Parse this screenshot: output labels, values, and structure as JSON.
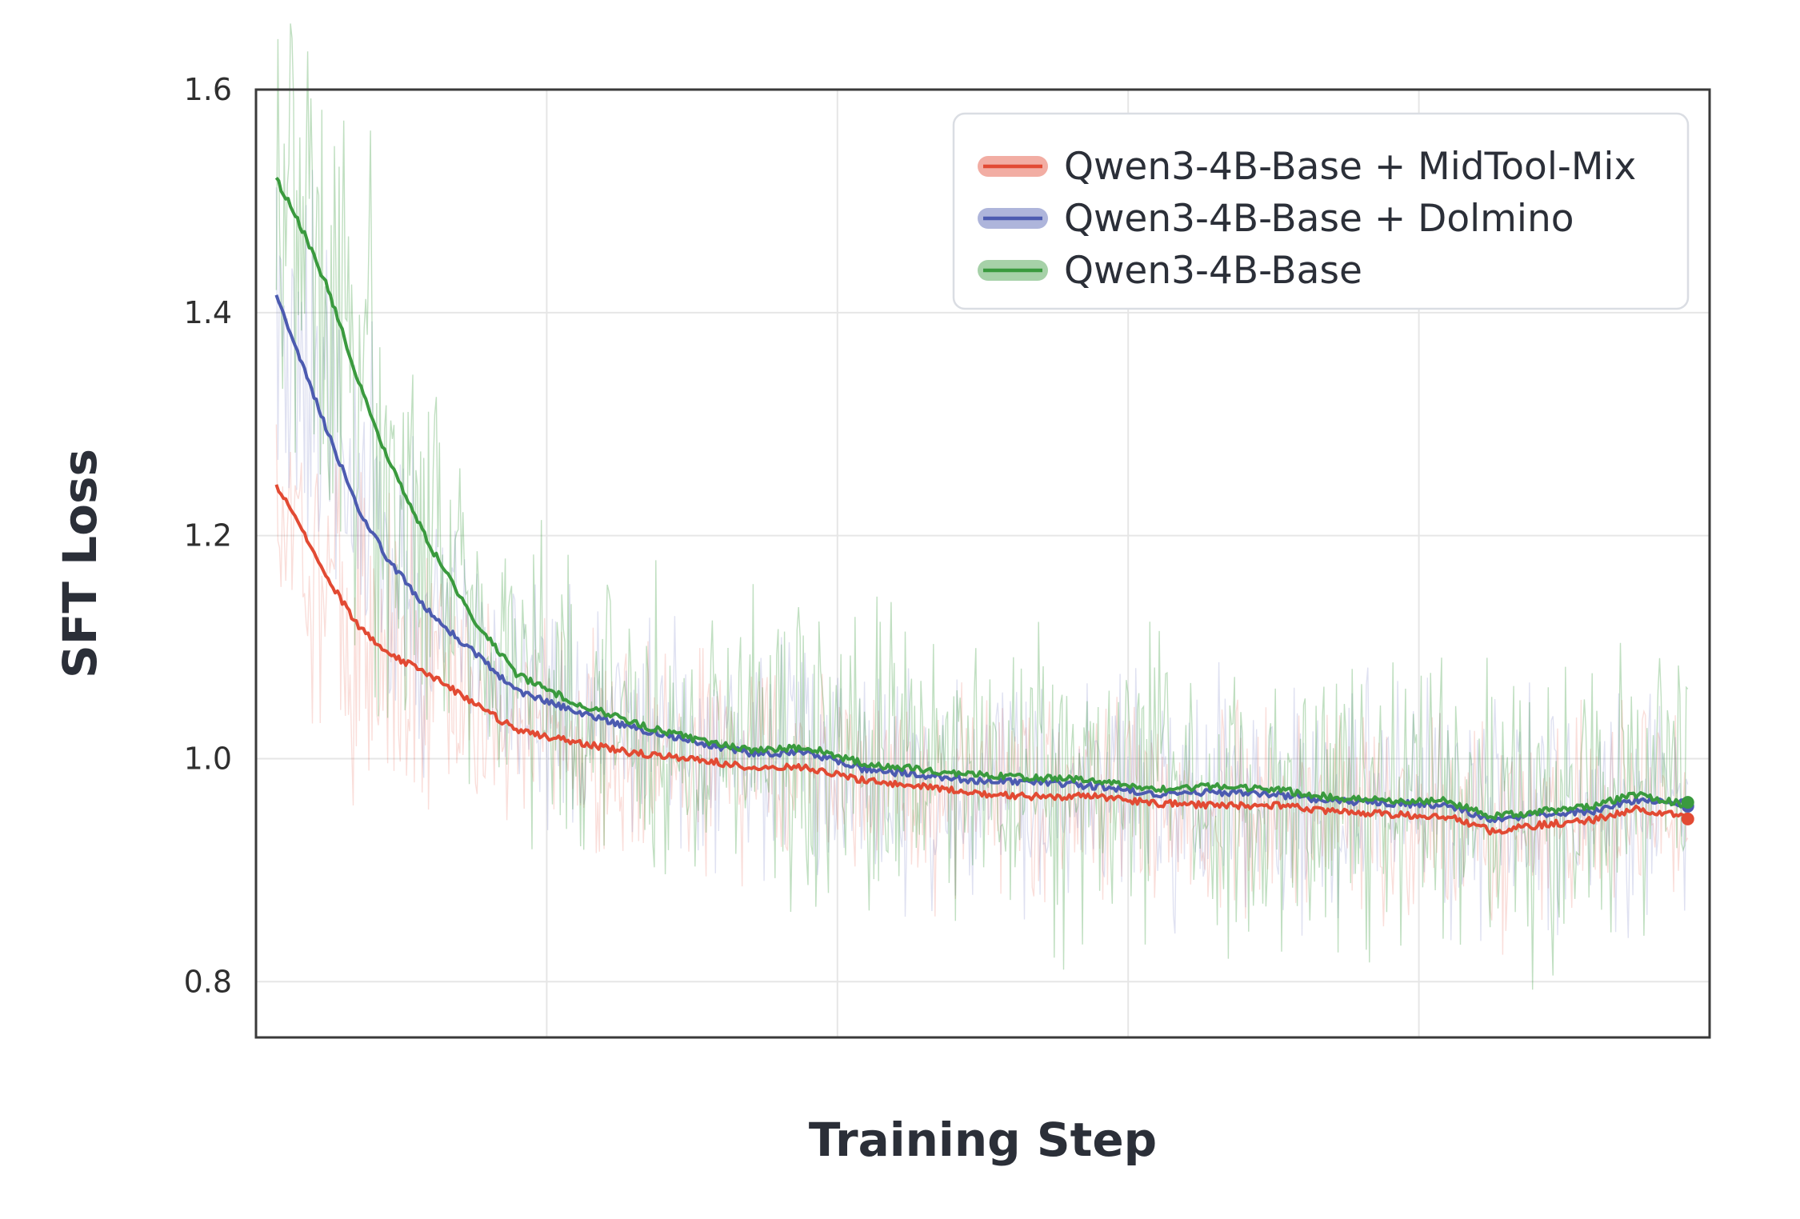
{
  "chart_data": {
    "type": "line",
    "title": "",
    "xlabel": "Training Step",
    "ylabel": "SFT Loss",
    "xlim": [
      0,
      1
    ],
    "ylim": [
      0.75,
      1.6
    ],
    "y_ticks": [
      "0.8",
      "1.0",
      "1.2",
      "1.4",
      "1.6"
    ],
    "x_gridlines_fraction": [
      0.2,
      0.4,
      0.6,
      0.8
    ],
    "x_tick_labels": [],
    "grid": true,
    "legend_position": "top-right",
    "series": [
      {
        "name": "Qwen3-4B-Base + MidTool-Mix",
        "color": "#e24a33",
        "smoothed": [
          [
            0.014,
            1.245
          ],
          [
            0.03,
            1.21
          ],
          [
            0.05,
            1.16
          ],
          [
            0.07,
            1.12
          ],
          [
            0.09,
            1.095
          ],
          [
            0.12,
            1.075
          ],
          [
            0.15,
            1.05
          ],
          [
            0.18,
            1.025
          ],
          [
            0.22,
            1.015
          ],
          [
            0.26,
            1.005
          ],
          [
            0.3,
            1.0
          ],
          [
            0.34,
            0.992
          ],
          [
            0.38,
            0.992
          ],
          [
            0.42,
            0.98
          ],
          [
            0.46,
            0.975
          ],
          [
            0.5,
            0.968
          ],
          [
            0.54,
            0.966
          ],
          [
            0.58,
            0.966
          ],
          [
            0.62,
            0.96
          ],
          [
            0.66,
            0.958
          ],
          [
            0.7,
            0.958
          ],
          [
            0.74,
            0.953
          ],
          [
            0.78,
            0.95
          ],
          [
            0.82,
            0.948
          ],
          [
            0.85,
            0.935
          ],
          [
            0.88,
            0.94
          ],
          [
            0.92,
            0.945
          ],
          [
            0.95,
            0.955
          ],
          [
            0.985,
            0.948
          ]
        ],
        "noise_amplitude": 0.09
      },
      {
        "name": "Qwen3-4B-Base + Dolmino",
        "color": "#4c5bb0",
        "smoothed": [
          [
            0.014,
            1.415
          ],
          [
            0.03,
            1.36
          ],
          [
            0.05,
            1.29
          ],
          [
            0.07,
            1.225
          ],
          [
            0.09,
            1.18
          ],
          [
            0.12,
            1.13
          ],
          [
            0.15,
            1.095
          ],
          [
            0.18,
            1.06
          ],
          [
            0.22,
            1.042
          ],
          [
            0.26,
            1.028
          ],
          [
            0.3,
            1.015
          ],
          [
            0.34,
            1.005
          ],
          [
            0.38,
            1.005
          ],
          [
            0.42,
            0.99
          ],
          [
            0.46,
            0.985
          ],
          [
            0.5,
            0.98
          ],
          [
            0.54,
            0.978
          ],
          [
            0.58,
            0.975
          ],
          [
            0.62,
            0.968
          ],
          [
            0.66,
            0.97
          ],
          [
            0.7,
            0.968
          ],
          [
            0.74,
            0.962
          ],
          [
            0.78,
            0.96
          ],
          [
            0.82,
            0.958
          ],
          [
            0.85,
            0.945
          ],
          [
            0.88,
            0.95
          ],
          [
            0.92,
            0.953
          ],
          [
            0.95,
            0.963
          ],
          [
            0.985,
            0.96
          ]
        ],
        "noise_amplitude": 0.1
      },
      {
        "name": "Qwen3-4B-Base",
        "color": "#3a9a3e",
        "smoothed": [
          [
            0.014,
            1.52
          ],
          [
            0.03,
            1.48
          ],
          [
            0.05,
            1.42
          ],
          [
            0.07,
            1.34
          ],
          [
            0.09,
            1.27
          ],
          [
            0.12,
            1.19
          ],
          [
            0.15,
            1.125
          ],
          [
            0.18,
            1.075
          ],
          [
            0.22,
            1.05
          ],
          [
            0.26,
            1.032
          ],
          [
            0.3,
            1.018
          ],
          [
            0.34,
            1.008
          ],
          [
            0.38,
            1.01
          ],
          [
            0.42,
            0.995
          ],
          [
            0.46,
            0.99
          ],
          [
            0.5,
            0.985
          ],
          [
            0.54,
            0.983
          ],
          [
            0.58,
            0.98
          ],
          [
            0.62,
            0.973
          ],
          [
            0.66,
            0.975
          ],
          [
            0.7,
            0.973
          ],
          [
            0.74,
            0.965
          ],
          [
            0.78,
            0.963
          ],
          [
            0.82,
            0.962
          ],
          [
            0.85,
            0.948
          ],
          [
            0.88,
            0.952
          ],
          [
            0.92,
            0.958
          ],
          [
            0.95,
            0.968
          ],
          [
            0.985,
            0.958
          ]
        ],
        "noise_amplitude": 0.13
      }
    ]
  }
}
